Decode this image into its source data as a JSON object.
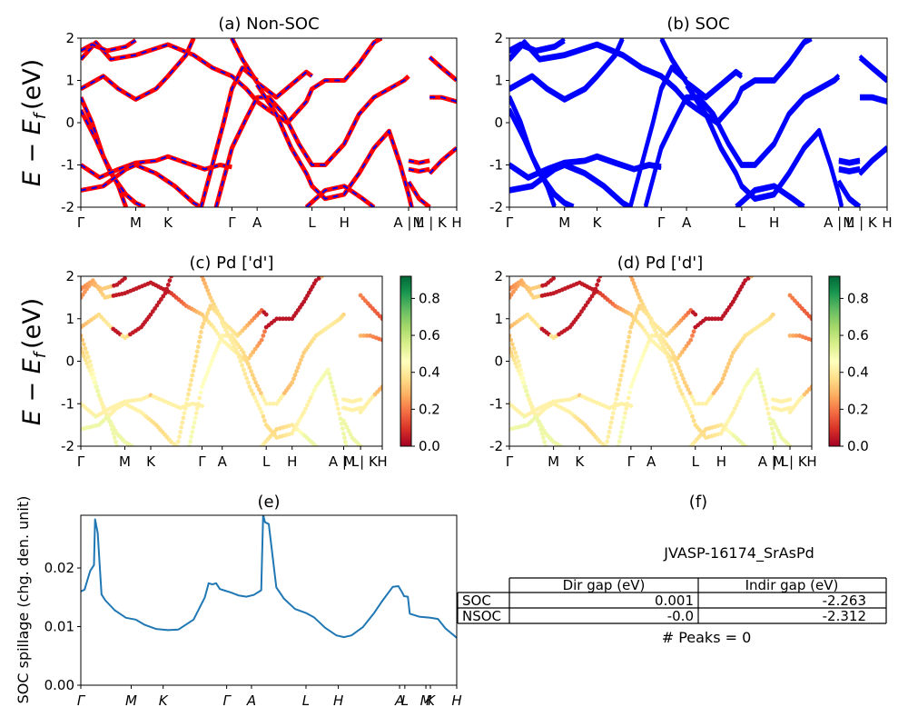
{
  "figure_id": "JVASP-16174_SrAsPd",
  "band_ylabel": "E − E",
  "band_ylabel_sub": "f",
  "band_ylabel_unit": "(eV)",
  "kpath": [
    "Γ",
    "M",
    "K",
    "Γ",
    "A",
    "L",
    "H",
    "A | L",
    "M | K",
    "H"
  ],
  "kpath_spillage": [
    "Γ",
    "M",
    "K",
    "Γ",
    "A",
    "L",
    "H",
    "A",
    "L",
    "M",
    "K",
    "H"
  ],
  "colors": {
    "nonsoc_up": "#ff0000",
    "nonsoc_dn": "#0000ff",
    "soc": "#0000ff",
    "spillage_line": "#1f77b4"
  },
  "colorbar_ticks": [
    "0.0",
    "0.2",
    "0.4",
    "0.6",
    "0.8"
  ],
  "panels": {
    "a": {
      "title": "(a) Non-SOC"
    },
    "b": {
      "title": "(b) SOC"
    },
    "c": {
      "title": "(c)  Pd ['d']"
    },
    "d": {
      "title": "(d) Pd ['d']"
    },
    "e": {
      "title": "(e)",
      "ylabel": "SOC spillage (chg. den. unit)"
    },
    "f": {
      "title": "(f)"
    }
  },
  "table": {
    "headers": [
      "",
      "Dir gap (eV)",
      "Indir gap (eV)"
    ],
    "rows": [
      [
        "SOC",
        "0.001",
        "-2.263"
      ],
      [
        "NSOC",
        "-0.0",
        "-2.312"
      ]
    ],
    "peaks": "# Peaks = 0"
  },
  "chart_data": [
    {
      "type": "line",
      "panel": "a",
      "title": "(a) Non-SOC",
      "ylabel": "E − E_f (eV)",
      "ylim": [
        -2,
        2
      ],
      "yticks": [
        -2,
        -1,
        0,
        1,
        2
      ],
      "xticks": [
        "Γ",
        "M",
        "K",
        "Γ",
        "A",
        "L",
        "H",
        "A | L",
        "M | K",
        "H"
      ],
      "xtick_pos": [
        0.0,
        0.146,
        0.232,
        0.402,
        0.469,
        0.615,
        0.701,
        0.872,
        0.928,
        1.0
      ],
      "series_note": "spin up (red) and spin down (blue dashed) coincide",
      "bands": [
        [
          [
            0,
            1.5
          ],
          [
            0.04,
            1.9
          ],
          [
            0.08,
            1.5
          ],
          [
            0.146,
            1.6
          ],
          [
            0.232,
            1.85
          ],
          [
            0.3,
            1.6
          ],
          [
            0.35,
            1.3
          ],
          [
            0.402,
            1.1
          ],
          [
            0.44,
            0.8
          ],
          [
            0.469,
            0.5
          ],
          [
            0.5,
            0.3
          ],
          [
            0.55,
            0.0
          ],
          [
            0.6,
            0.5
          ],
          [
            0.615,
            0.8
          ],
          [
            0.65,
            1.0
          ],
          [
            0.701,
            1.0
          ],
          [
            0.74,
            1.4
          ],
          [
            0.78,
            1.9
          ],
          [
            0.8,
            2.0
          ]
        ],
        [
          [
            0,
            1.7
          ],
          [
            0.03,
            1.85
          ],
          [
            0.07,
            1.7
          ],
          [
            0.12,
            1.8
          ],
          [
            0.146,
            1.95
          ]
        ],
        [
          [
            0,
            0.8
          ],
          [
            0.06,
            1.1
          ],
          [
            0.1,
            0.8
          ],
          [
            0.146,
            0.55
          ],
          [
            0.2,
            0.8
          ],
          [
            0.232,
            1.1
          ],
          [
            0.28,
            1.6
          ],
          [
            0.3,
            2.0
          ]
        ],
        [
          [
            0.402,
            2.0
          ],
          [
            0.43,
            1.5
          ],
          [
            0.469,
            0.95
          ],
          [
            0.52,
            0.6
          ],
          [
            0.56,
            0.9
          ],
          [
            0.6,
            1.2
          ],
          [
            0.615,
            1.1
          ]
        ],
        [
          [
            0.0,
            0.6
          ],
          [
            0.03,
            0.0
          ],
          [
            0.06,
            -0.8
          ],
          [
            0.1,
            -1.5
          ],
          [
            0.12,
            -2.0
          ]
        ],
        [
          [
            0.0,
            0.3
          ],
          [
            0.04,
            -0.4
          ],
          [
            0.08,
            -1.2
          ],
          [
            0.12,
            -1.7
          ],
          [
            0.146,
            -1.9
          ],
          [
            0.17,
            -2.0
          ]
        ],
        [
          [
            0.0,
            -1.0
          ],
          [
            0.05,
            -1.3
          ],
          [
            0.1,
            -1.1
          ],
          [
            0.146,
            -0.95
          ],
          [
            0.2,
            -0.9
          ],
          [
            0.232,
            -0.8
          ],
          [
            0.28,
            -0.95
          ],
          [
            0.33,
            -1.1
          ],
          [
            0.37,
            -1.0
          ],
          [
            0.402,
            -1.05
          ]
        ],
        [
          [
            0.0,
            -1.6
          ],
          [
            0.06,
            -1.5
          ],
          [
            0.12,
            -1.1
          ],
          [
            0.146,
            -1.0
          ],
          [
            0.2,
            -1.2
          ],
          [
            0.25,
            -1.5
          ],
          [
            0.3,
            -1.9
          ],
          [
            0.32,
            -2.0
          ]
        ],
        [
          [
            0.32,
            -2.0
          ],
          [
            0.35,
            -1.0
          ],
          [
            0.38,
            0.0
          ],
          [
            0.402,
            0.8
          ],
          [
            0.43,
            1.3
          ],
          [
            0.469,
            1.0
          ]
        ],
        [
          [
            0.36,
            -2.0
          ],
          [
            0.39,
            -1.0
          ],
          [
            0.402,
            -0.6
          ],
          [
            0.44,
            0.1
          ],
          [
            0.469,
            0.6
          ],
          [
            0.5,
            0.6
          ],
          [
            0.54,
            0.2
          ],
          [
            0.58,
            -0.5
          ],
          [
            0.615,
            -1.0
          ],
          [
            0.65,
            -1.0
          ],
          [
            0.701,
            -0.5
          ],
          [
            0.74,
            0.2
          ],
          [
            0.78,
            0.6
          ],
          [
            0.82,
            0.8
          ],
          [
            0.86,
            1.0
          ],
          [
            0.872,
            1.1
          ]
        ],
        [
          [
            0.469,
            0.9
          ],
          [
            0.52,
            0.2
          ],
          [
            0.56,
            -0.6
          ],
          [
            0.6,
            -1.2
          ],
          [
            0.615,
            -1.5
          ],
          [
            0.65,
            -1.8
          ],
          [
            0.7,
            -1.7
          ],
          [
            0.74,
            -1.2
          ],
          [
            0.78,
            -0.6
          ],
          [
            0.82,
            -0.2
          ],
          [
            0.85,
            -1.0
          ],
          [
            0.872,
            -1.7
          ],
          [
            0.88,
            -2.0
          ]
        ],
        [
          [
            0.6,
            -2.0
          ],
          [
            0.65,
            -1.6
          ],
          [
            0.701,
            -1.5
          ],
          [
            0.75,
            -1.8
          ],
          [
            0.78,
            -2.0
          ]
        ],
        [
          [
            0.872,
            -0.9
          ],
          [
            0.9,
            -0.95
          ],
          [
            0.928,
            -0.9
          ]
        ],
        [
          [
            0.872,
            -1.1
          ],
          [
            0.9,
            -1.15
          ],
          [
            0.928,
            -1.1
          ]
        ],
        [
          [
            0.872,
            -1.4
          ],
          [
            0.9,
            -1.8
          ],
          [
            0.928,
            -2.0
          ]
        ],
        [
          [
            0.928,
            1.55
          ],
          [
            0.96,
            1.3
          ],
          [
            1.0,
            1.0
          ]
        ],
        [
          [
            0.928,
            0.6
          ],
          [
            0.96,
            0.6
          ],
          [
            1.0,
            0.5
          ]
        ],
        [
          [
            0.928,
            -1.2
          ],
          [
            0.96,
            -0.9
          ],
          [
            1.0,
            -0.6
          ]
        ]
      ]
    },
    {
      "type": "line",
      "panel": "b",
      "title": "(b) SOC",
      "ylim": [
        -2,
        2
      ],
      "yticks": [
        -2,
        -1,
        0,
        1,
        2
      ],
      "xticks": [
        "Γ",
        "M",
        "K",
        "Γ",
        "A",
        "L",
        "H",
        "A | L",
        "M | K",
        "H"
      ],
      "series_note": "bands same as (a), SOC-split"
    },
    {
      "type": "scatter",
      "panel": "c",
      "title": "(c)  Pd ['d']",
      "ylabel": "E − E_f (eV)",
      "ylim": [
        -2,
        2
      ],
      "yticks": [
        -2,
        -1,
        0,
        1,
        2
      ],
      "xticks": [
        "Γ",
        "M",
        "K",
        "Γ",
        "A",
        "L",
        "H",
        "A | L",
        "M | K",
        "H"
      ],
      "colorbar": {
        "cmap": "RdYlGn",
        "range": [
          0.0,
          0.92
        ],
        "ticks": [
          0.0,
          0.2,
          0.4,
          0.6,
          0.8
        ]
      },
      "series_note": "band points colored by Pd d-orbital weight"
    },
    {
      "type": "scatter",
      "panel": "d",
      "title": "(d) Pd ['d']",
      "ylim": [
        -2,
        2
      ],
      "yticks": [
        -2,
        -1,
        0,
        1,
        2
      ],
      "xticks": [
        "Γ",
        "M",
        "K",
        "Γ",
        "A",
        "L",
        "H",
        "A | L",
        "M | K",
        "H"
      ],
      "colorbar": {
        "cmap": "RdYlGn",
        "range": [
          0.0,
          0.92
        ],
        "ticks": [
          0.0,
          0.2,
          0.4,
          0.6,
          0.8
        ]
      }
    },
    {
      "type": "line",
      "panel": "e",
      "title": "(e)",
      "ylabel": "SOC spillage (chg. den. unit)",
      "ylim": [
        0.0,
        0.029
      ],
      "yticks": [
        0.0,
        0.01,
        0.02
      ],
      "xticks": [
        "Γ",
        "M",
        "K",
        "Γ",
        "A",
        "L",
        "H",
        "A",
        "L",
        "M",
        "K",
        "H"
      ],
      "x": [
        0.0,
        0.01,
        0.025,
        0.035,
        0.038,
        0.045,
        0.055,
        0.065,
        0.09,
        0.12,
        0.146,
        0.17,
        0.2,
        0.232,
        0.26,
        0.3,
        0.33,
        0.34,
        0.35,
        0.36,
        0.37,
        0.38,
        0.4,
        0.42,
        0.44,
        0.46,
        0.48,
        0.485,
        0.49,
        0.5,
        0.52,
        0.54,
        0.57,
        0.6,
        0.62,
        0.65,
        0.68,
        0.7,
        0.72,
        0.75,
        0.78,
        0.8,
        0.83,
        0.845,
        0.855,
        0.86,
        0.87,
        0.875,
        0.9,
        0.93,
        0.95,
        0.97,
        1.0
      ],
      "values": [
        0.016,
        0.0163,
        0.0195,
        0.0205,
        0.0283,
        0.026,
        0.0155,
        0.0145,
        0.0128,
        0.0115,
        0.0112,
        0.0103,
        0.0096,
        0.0094,
        0.0095,
        0.0112,
        0.015,
        0.0174,
        0.0172,
        0.0174,
        0.0164,
        0.0162,
        0.0158,
        0.0153,
        0.0151,
        0.0154,
        0.0162,
        0.0291,
        0.0278,
        0.0275,
        0.0167,
        0.0148,
        0.013,
        0.0123,
        0.0116,
        0.0098,
        0.0085,
        0.0082,
        0.0085,
        0.0099,
        0.0123,
        0.0142,
        0.0168,
        0.0169,
        0.0158,
        0.0152,
        0.0151,
        0.0122,
        0.0117,
        0.0115,
        0.0113,
        0.0097,
        0.0081
      ]
    }
  ]
}
